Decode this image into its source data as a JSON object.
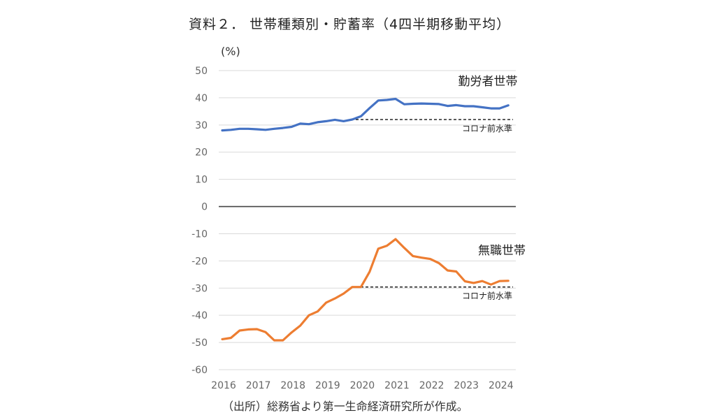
{
  "chart_data": {
    "type": "line",
    "title": "資料２． 世帯種類別・貯蓄率（4四半期移動平均）",
    "ylabel": "(%)",
    "xlabel": "",
    "ylim": [
      -60,
      50
    ],
    "yticks": [
      "50",
      "40",
      "30",
      "20",
      "10",
      "0",
      "-10",
      "-20",
      "-30",
      "-40",
      "-50",
      "-60"
    ],
    "ytick_values": [
      50,
      40,
      30,
      20,
      10,
      0,
      -10,
      -20,
      -30,
      -40,
      -50,
      -60
    ],
    "xticks": [
      "2016",
      "2017",
      "2018",
      "2019",
      "2020",
      "2021",
      "2022",
      "2023",
      "2024"
    ],
    "x_start": "2016Q1",
    "x_step": "quarter",
    "grid": true,
    "zero_line": true,
    "series": [
      {
        "name": "勤労者世帯",
        "color": "#4472C4",
        "values": [
          28.0,
          28.2,
          28.6,
          28.6,
          28.4,
          28.2,
          28.6,
          28.9,
          29.3,
          30.5,
          30.3,
          31.0,
          31.4,
          31.9,
          31.4,
          32.0,
          33.2,
          36.2,
          39.0,
          39.2,
          39.6,
          37.6,
          37.8,
          37.9,
          37.8,
          37.7,
          37.0,
          37.3,
          36.9,
          36.9,
          36.5,
          36.1,
          36.1,
          37.2
        ]
      },
      {
        "name": "無職世帯",
        "color": "#ED7D31",
        "values": [
          -48.8,
          -48.3,
          -45.6,
          -45.2,
          -45.1,
          -46.2,
          -49.2,
          -49.2,
          -46.3,
          -43.8,
          -40.0,
          -38.6,
          -35.3,
          -33.8,
          -32.0,
          -29.6,
          -29.6,
          -24.0,
          -15.5,
          -14.4,
          -12.0,
          -15.2,
          -18.2,
          -18.8,
          -19.3,
          -20.8,
          -23.5,
          -23.9,
          -27.5,
          -28.1,
          -27.4,
          -28.7,
          -27.4,
          -27.3
        ]
      }
    ],
    "reference_lines": [
      {
        "label": "コロナ前水準",
        "series": "勤労者世帯",
        "value": 32.0,
        "from_index": 15
      },
      {
        "label": "コロナ前水準",
        "series": "無職世帯",
        "value": -29.6,
        "from_index": 15
      }
    ],
    "source": "（出所）総務省より第一生命経済研究所が作成。"
  }
}
